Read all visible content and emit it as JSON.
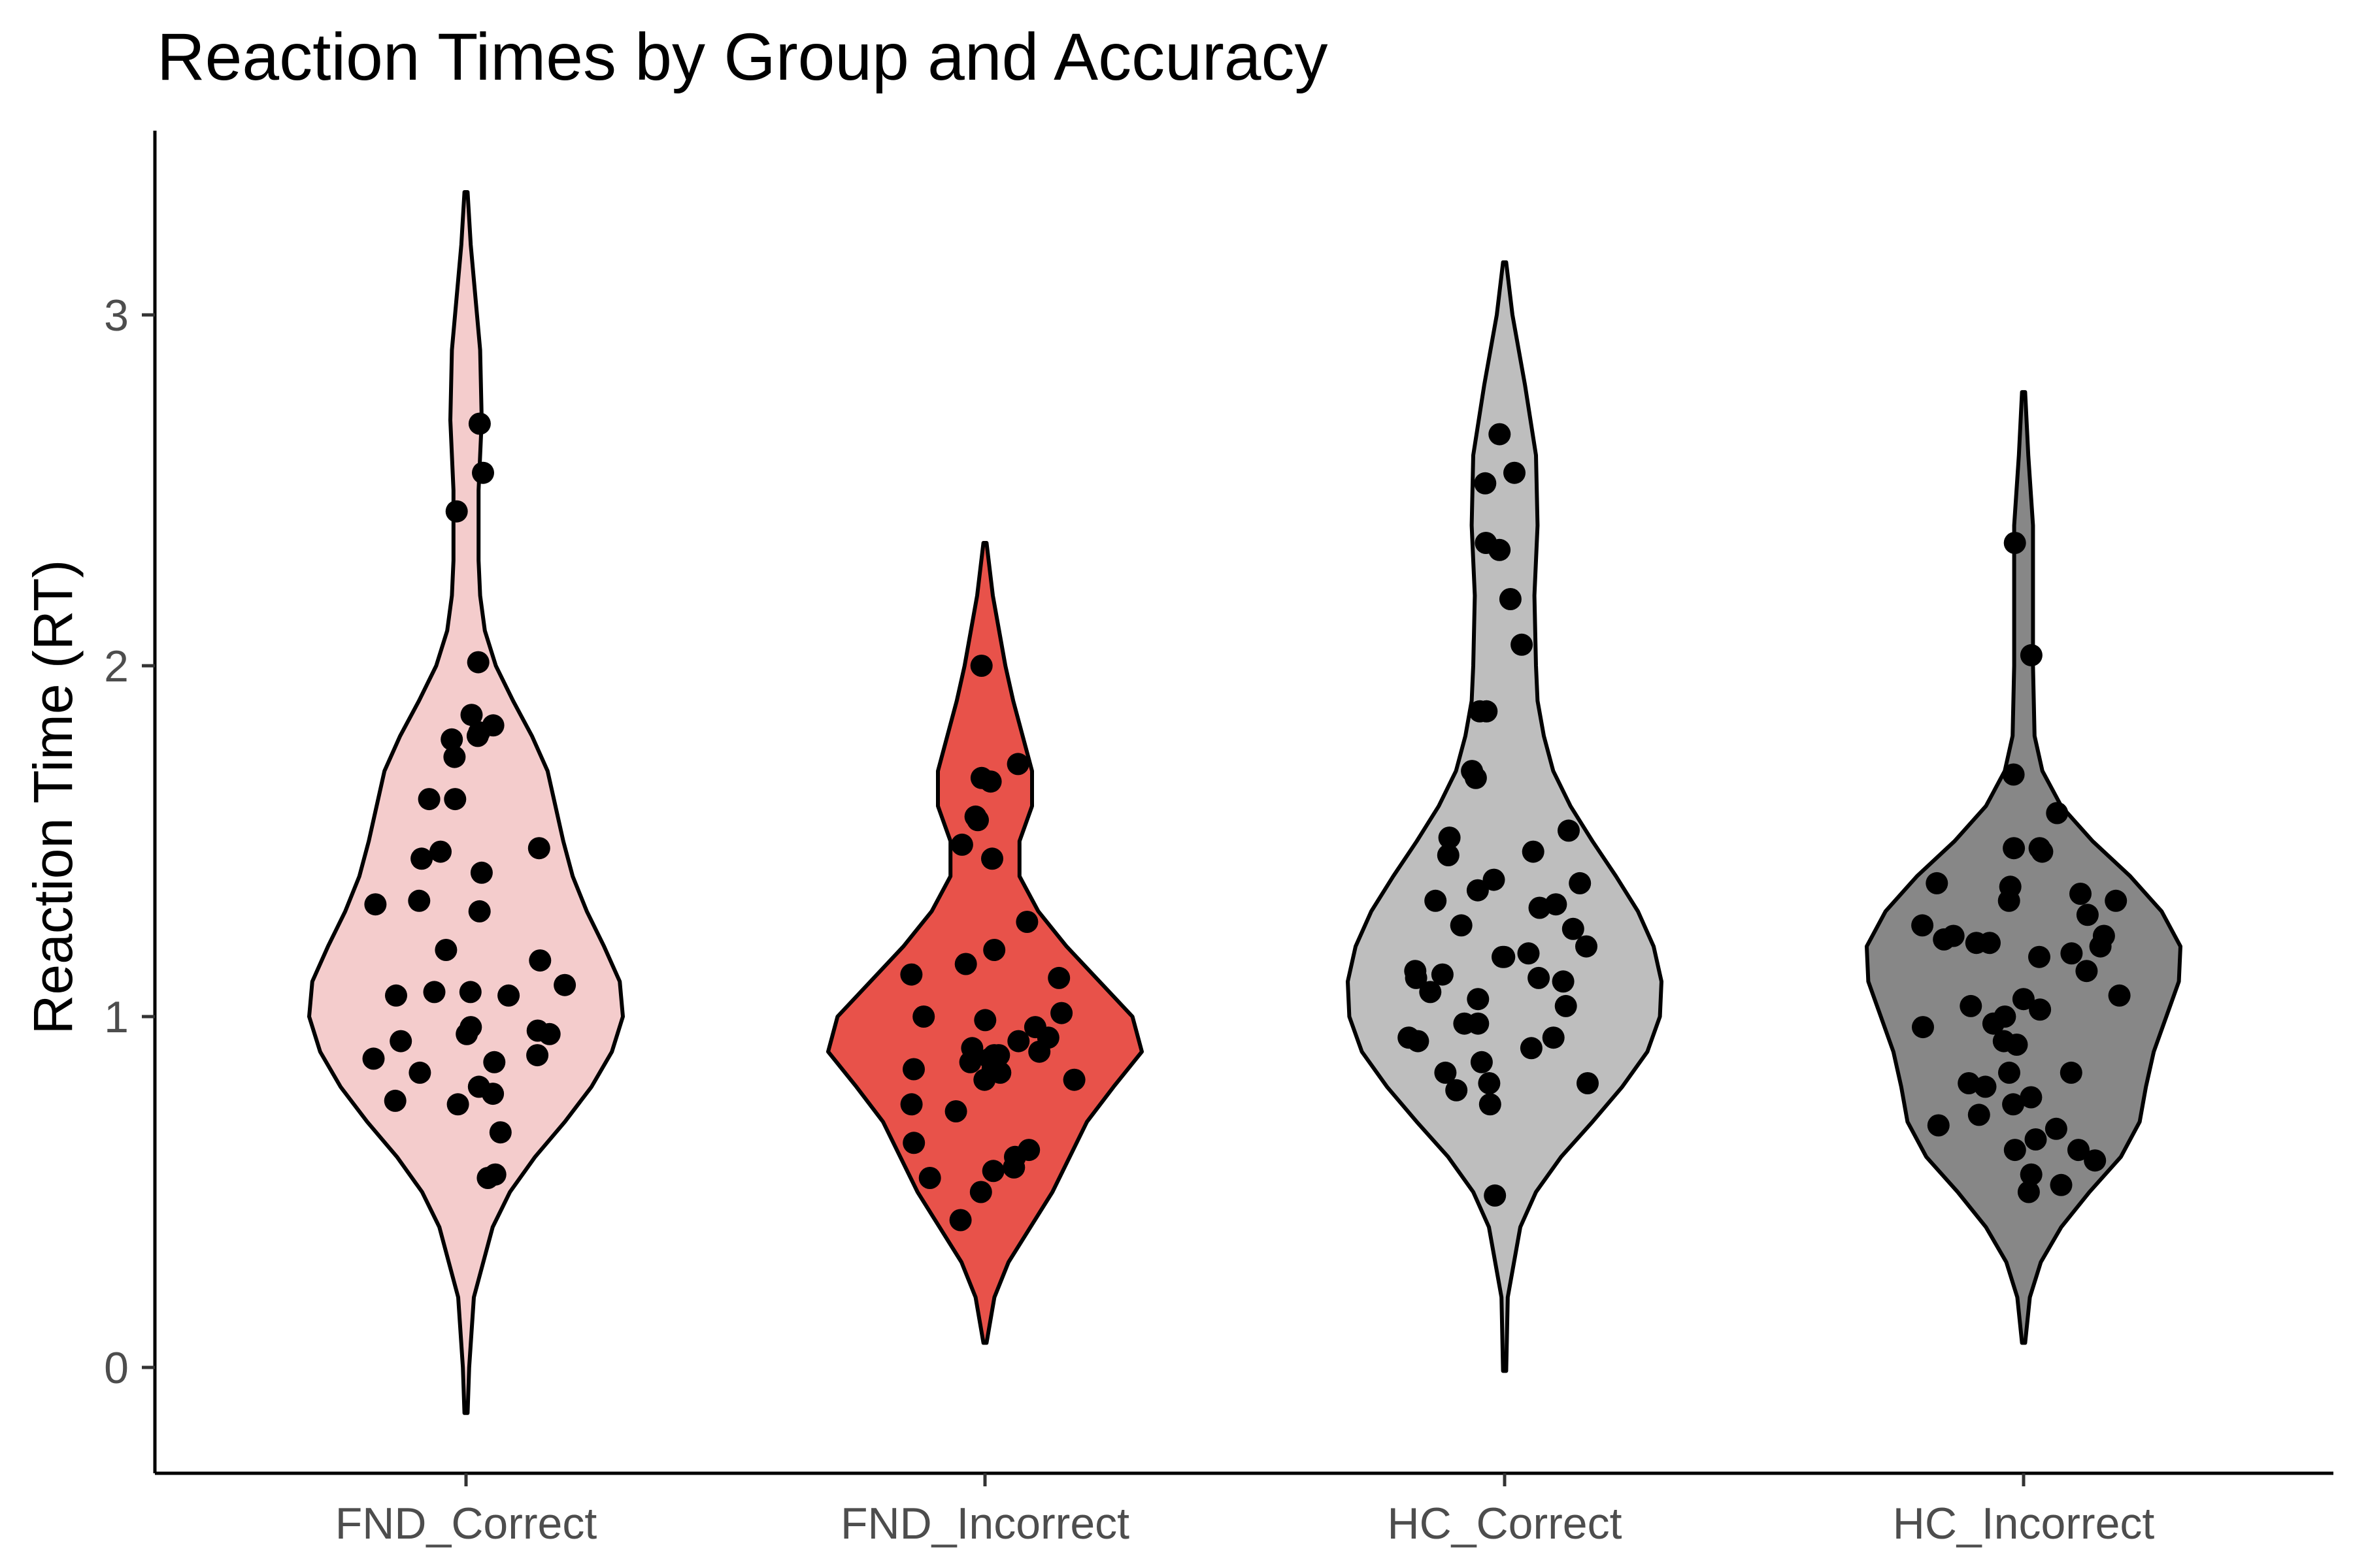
{
  "chart_data": {
    "type": "violin",
    "title": "Reaction Times by Group and Accuracy",
    "xlabel": "",
    "ylabel": "Reaction Time (RT)",
    "ylim": [
      -0.3,
      3.5
    ],
    "yticks": [
      0,
      1,
      2,
      3
    ],
    "grid": false,
    "legend": "none",
    "categories": [
      "FND_Correct",
      "FND_Incorrect",
      "HC_Correct",
      "HC_Incorrect"
    ],
    "groups": [
      {
        "name": "FND_Correct",
        "fill": "#f4cccc",
        "range": [
          -0.13,
          3.35
        ],
        "density": [
          [
            -0.13,
            0.01
          ],
          [
            0.0,
            0.02
          ],
          [
            0.2,
            0.05
          ],
          [
            0.4,
            0.17
          ],
          [
            0.5,
            0.28
          ],
          [
            0.6,
            0.44
          ],
          [
            0.7,
            0.63
          ],
          [
            0.8,
            0.8
          ],
          [
            0.9,
            0.93
          ],
          [
            1.0,
            1.0
          ],
          [
            1.1,
            0.98
          ],
          [
            1.2,
            0.88
          ],
          [
            1.3,
            0.77
          ],
          [
            1.4,
            0.68
          ],
          [
            1.5,
            0.62
          ],
          [
            1.6,
            0.57
          ],
          [
            1.7,
            0.52
          ],
          [
            1.8,
            0.42
          ],
          [
            1.9,
            0.3
          ],
          [
            2.0,
            0.19
          ],
          [
            2.1,
            0.12
          ],
          [
            2.2,
            0.09
          ],
          [
            2.3,
            0.08
          ],
          [
            2.5,
            0.08
          ],
          [
            2.7,
            0.1
          ],
          [
            2.9,
            0.09
          ],
          [
            3.0,
            0.07
          ],
          [
            3.2,
            0.03
          ],
          [
            3.35,
            0.01
          ]
        ],
        "points": [
          0.67,
          0.8,
          0.75,
          0.84,
          0.55,
          0.54,
          0.95,
          0.97,
          1.07,
          1.32,
          1.41,
          1.8,
          1.19,
          2.69,
          1.47,
          1.62,
          1.62,
          1.09,
          1.06,
          1.16,
          0.89,
          0.88,
          1.81,
          2.55,
          1.45,
          2.01,
          1.06,
          0.95,
          0.93,
          1.07,
          1.86,
          1.79,
          1.74,
          1.3,
          0.76,
          0.87,
          1.48,
          1.33,
          2.44,
          1.83,
          0.96,
          0.78
        ]
      },
      {
        "name": "FND_Incorrect",
        "fill": "#e8524a",
        "range": [
          0.07,
          2.35
        ],
        "density": [
          [
            0.07,
            0.01
          ],
          [
            0.2,
            0.06
          ],
          [
            0.3,
            0.15
          ],
          [
            0.4,
            0.29
          ],
          [
            0.5,
            0.43
          ],
          [
            0.6,
            0.54
          ],
          [
            0.7,
            0.65
          ],
          [
            0.8,
            0.82
          ],
          [
            0.9,
            1.0
          ],
          [
            1.0,
            0.94
          ],
          [
            1.1,
            0.73
          ],
          [
            1.2,
            0.52
          ],
          [
            1.3,
            0.34
          ],
          [
            1.4,
            0.22
          ],
          [
            1.5,
            0.22
          ],
          [
            1.6,
            0.3
          ],
          [
            1.7,
            0.3
          ],
          [
            1.8,
            0.24
          ],
          [
            1.9,
            0.18
          ],
          [
            2.0,
            0.13
          ],
          [
            2.1,
            0.09
          ],
          [
            2.2,
            0.05
          ],
          [
            2.35,
            0.01
          ]
        ],
        "points": [
          1.12,
          1.57,
          0.73,
          0.82,
          0.85,
          0.89,
          0.56,
          1.67,
          1.19,
          1.15,
          1.11,
          0.94,
          1.0,
          0.97,
          0.93,
          1.72,
          1.68,
          1.27,
          0.99,
          0.88,
          0.82,
          0.75,
          1.49,
          2.0,
          1.01,
          0.84,
          0.85,
          0.89,
          0.9,
          0.64,
          1.45,
          0.54,
          1.56,
          0.42,
          0.57,
          0.6,
          0.62,
          0.5,
          0.91,
          0.87
        ]
      },
      {
        "name": "HC_Correct",
        "fill": "#bebebe",
        "range": [
          -0.01,
          3.15
        ],
        "density": [
          [
            -0.01,
            0.01
          ],
          [
            0.2,
            0.02
          ],
          [
            0.4,
            0.1
          ],
          [
            0.5,
            0.2
          ],
          [
            0.6,
            0.36
          ],
          [
            0.7,
            0.56
          ],
          [
            0.8,
            0.75
          ],
          [
            0.9,
            0.91
          ],
          [
            1.0,
            0.99
          ],
          [
            1.1,
            1.0
          ],
          [
            1.2,
            0.95
          ],
          [
            1.3,
            0.85
          ],
          [
            1.4,
            0.71
          ],
          [
            1.5,
            0.56
          ],
          [
            1.6,
            0.42
          ],
          [
            1.7,
            0.31
          ],
          [
            1.8,
            0.25
          ],
          [
            1.9,
            0.21
          ],
          [
            2.0,
            0.2
          ],
          [
            2.2,
            0.19
          ],
          [
            2.4,
            0.21
          ],
          [
            2.6,
            0.2
          ],
          [
            2.8,
            0.13
          ],
          [
            3.0,
            0.05
          ],
          [
            3.15,
            0.01
          ]
        ],
        "points": [
          0.81,
          0.49,
          1.2,
          1.18,
          1.38,
          1.47,
          2.52,
          2.06,
          1.13,
          1.26,
          0.94,
          0.91,
          1.07,
          1.11,
          0.84,
          1.17,
          1.39,
          1.33,
          0.94,
          2.35,
          2.19,
          1.1,
          1.12,
          1.87,
          1.51,
          1.53,
          0.93,
          1.03,
          0.87,
          1.32,
          1.25,
          1.17,
          1.68,
          2.66,
          2.55,
          0.81,
          1.46,
          1.31,
          1.36,
          1.05,
          1.11,
          1.7,
          1.87,
          0.79,
          0.75,
          0.98,
          0.98,
          2.33
        ]
      },
      {
        "name": "HC_Incorrect",
        "fill": "#878787",
        "range": [
          0.07,
          2.78
        ],
        "density": [
          [
            0.07,
            0.01
          ],
          [
            0.2,
            0.04
          ],
          [
            0.3,
            0.11
          ],
          [
            0.4,
            0.24
          ],
          [
            0.5,
            0.42
          ],
          [
            0.6,
            0.62
          ],
          [
            0.7,
            0.74
          ],
          [
            0.8,
            0.78
          ],
          [
            0.9,
            0.83
          ],
          [
            1.0,
            0.91
          ],
          [
            1.1,
            0.99
          ],
          [
            1.2,
            1.0
          ],
          [
            1.3,
            0.88
          ],
          [
            1.4,
            0.68
          ],
          [
            1.5,
            0.44
          ],
          [
            1.6,
            0.24
          ],
          [
            1.7,
            0.12
          ],
          [
            1.8,
            0.07
          ],
          [
            2.0,
            0.06
          ],
          [
            2.2,
            0.06
          ],
          [
            2.4,
            0.06
          ],
          [
            2.6,
            0.03
          ],
          [
            2.78,
            0.01
          ]
        ],
        "points": [
          0.52,
          0.77,
          0.69,
          1.22,
          1.21,
          0.59,
          1.33,
          0.97,
          1.05,
          1.17,
          0.84,
          1.48,
          1.38,
          1.48,
          0.98,
          1.69,
          0.92,
          1.21,
          1.23,
          1.29,
          0.84,
          1.33,
          1.37,
          1.35,
          0.75,
          1.06,
          1.0,
          0.5,
          0.55,
          1.03,
          0.93,
          1.58,
          1.26,
          0.62,
          1.47,
          1.18,
          0.72,
          0.65,
          0.81,
          1.13,
          0.62,
          1.02,
          0.8,
          1.23,
          1.2,
          0.68,
          2.03,
          2.35
        ]
      }
    ]
  }
}
